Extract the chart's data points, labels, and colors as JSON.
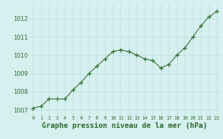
{
  "x": [
    0,
    1,
    2,
    3,
    4,
    5,
    6,
    7,
    8,
    9,
    10,
    11,
    12,
    13,
    14,
    15,
    16,
    17,
    18,
    19,
    20,
    21,
    22,
    23
  ],
  "y": [
    1007.1,
    1007.2,
    1007.6,
    1007.6,
    1007.6,
    1008.1,
    1008.5,
    1009.0,
    1009.4,
    1009.8,
    1010.2,
    1010.3,
    1010.2,
    1010.0,
    1009.8,
    1009.7,
    1009.3,
    1009.5,
    1010.0,
    1010.4,
    1011.0,
    1011.6,
    1012.1,
    1012.4
  ],
  "line_color": "#2d6a2d",
  "marker": "+",
  "marker_size": 4,
  "bg_color": "#d6f0ef",
  "grid_color": "#b8d8d8",
  "xlabel": "Graphe pression niveau de la mer (hPa)",
  "xlabel_fontsize": 7.5,
  "xlabel_color": "#2d6a2d",
  "ytick_labels": [
    "1007",
    "1008",
    "1009",
    "1010",
    "1011",
    "1012"
  ],
  "ytick_vals": [
    1007,
    1008,
    1009,
    1010,
    1011,
    1012
  ],
  "ylim": [
    1006.7,
    1012.8
  ],
  "xlim": [
    -0.5,
    23.5
  ],
  "xtick_fontsize": 5.0,
  "ytick_fontsize": 6.0
}
